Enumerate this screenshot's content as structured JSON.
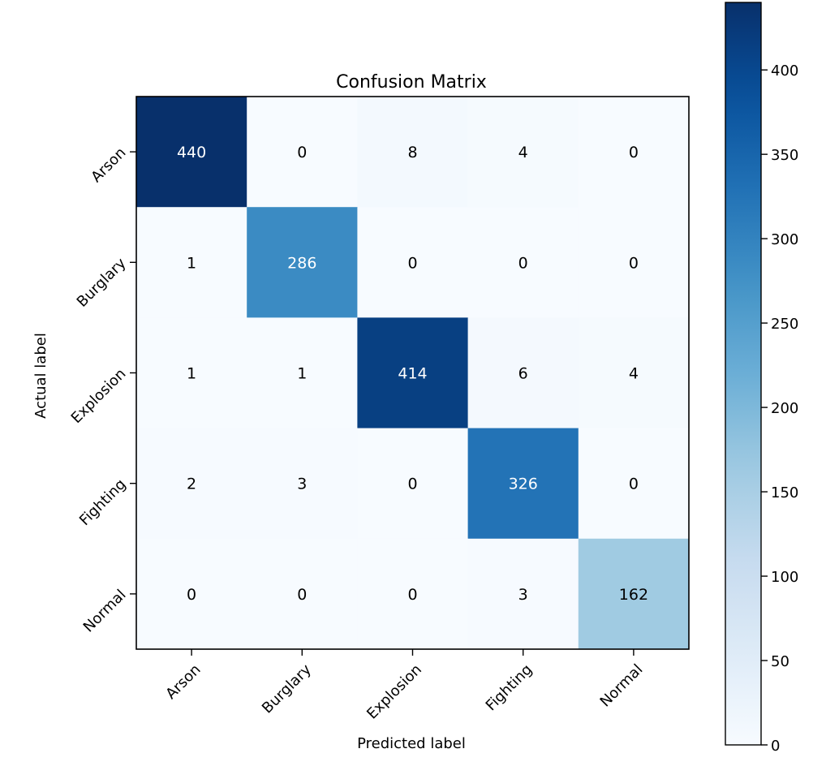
{
  "chart_data": {
    "type": "heatmap",
    "title": "Confusion Matrix",
    "xlabel": "Predicted label",
    "ylabel": "Actual label",
    "x_categories": [
      "Arson",
      "Burglary",
      "Explosion",
      "Fighting",
      "Normal"
    ],
    "y_categories": [
      "Arson",
      "Burglary",
      "Explosion",
      "Fighting",
      "Normal"
    ],
    "values": [
      [
        440,
        0,
        8,
        4,
        0
      ],
      [
        1,
        286,
        0,
        0,
        0
      ],
      [
        1,
        1,
        414,
        6,
        4
      ],
      [
        2,
        3,
        0,
        326,
        0
      ],
      [
        0,
        0,
        0,
        3,
        162
      ]
    ],
    "colorscale": "Blues",
    "value_range": [
      0,
      440
    ],
    "colorbar": {
      "ticks": [
        0,
        50,
        100,
        150,
        200,
        250,
        300,
        350,
        400
      ]
    },
    "grid": false
  }
}
